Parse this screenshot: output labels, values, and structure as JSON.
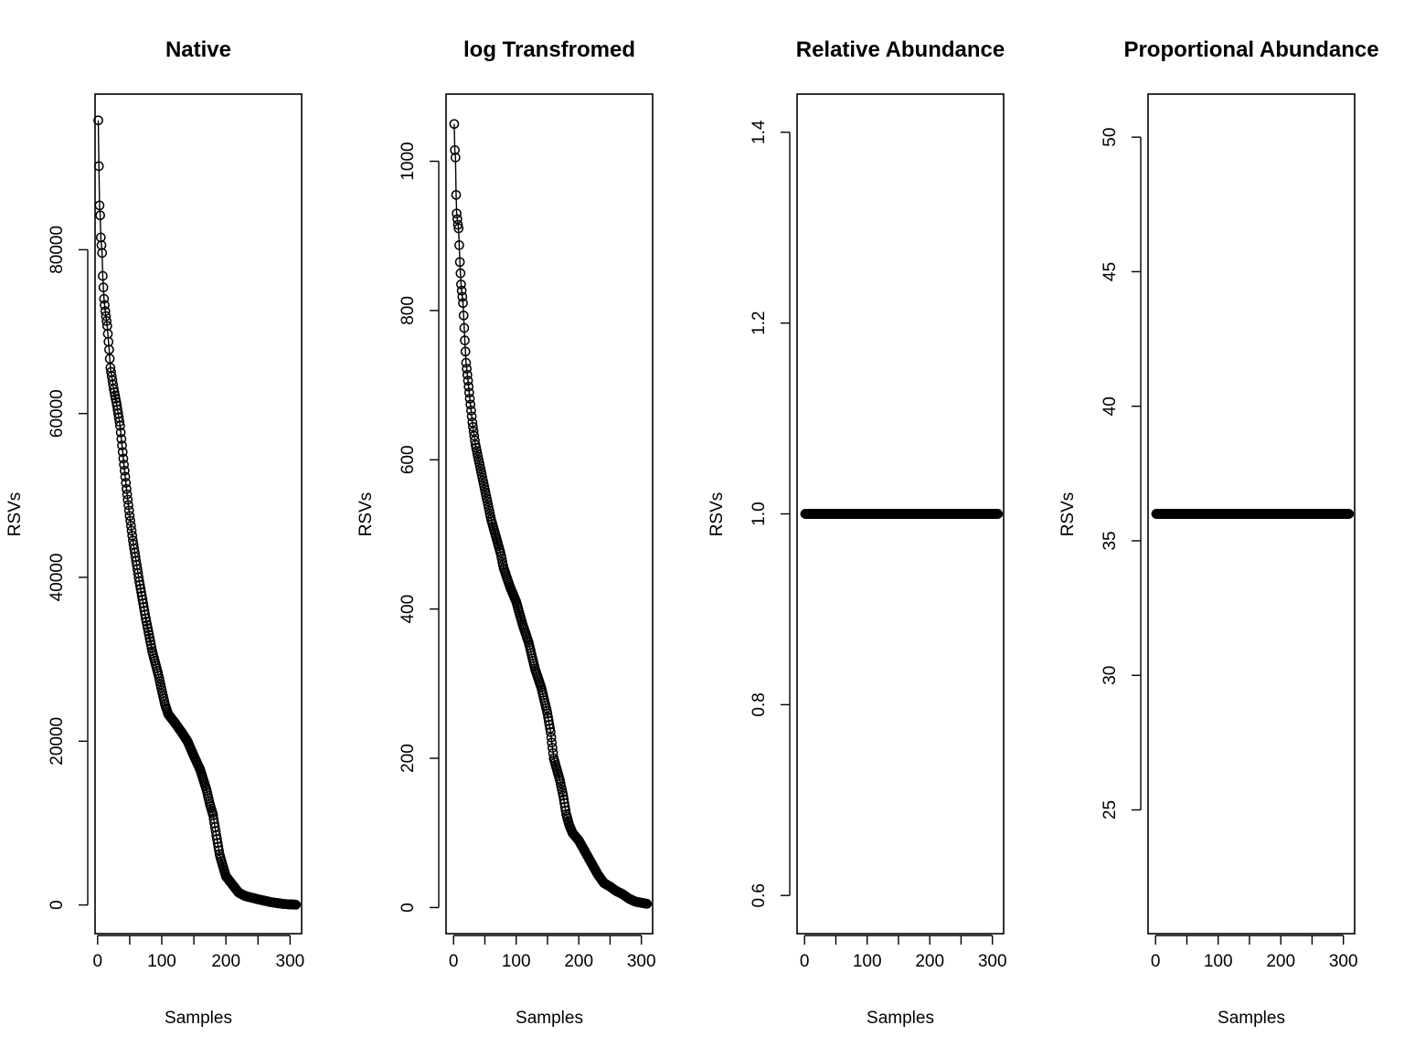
{
  "colors": {
    "ink": "#000000",
    "background": "#ffffff"
  },
  "chart_data": [
    {
      "type": "line",
      "title": "Native",
      "xlabel": "Samples",
      "ylabel": "RSVs",
      "xlim": [
        -4,
        318
      ],
      "ylim": [
        -3500,
        99000
      ],
      "xticks": [
        0,
        100,
        200,
        300
      ],
      "yticks": [
        0,
        20000,
        40000,
        60000,
        80000
      ],
      "x_ticks_unlabeled": [
        50,
        150,
        250
      ],
      "points_style": "open circles joined by line",
      "anchors": [
        [
          1,
          95800
        ],
        [
          2,
          90200
        ],
        [
          3,
          85400
        ],
        [
          4,
          84200
        ],
        [
          5,
          81500
        ],
        [
          7,
          79600
        ],
        [
          8,
          76800
        ],
        [
          10,
          74000
        ],
        [
          12,
          72500
        ],
        [
          15,
          70700
        ],
        [
          18,
          67800
        ],
        [
          20,
          65600
        ],
        [
          25,
          63000
        ],
        [
          30,
          61000
        ],
        [
          35,
          58500
        ],
        [
          40,
          54500
        ],
        [
          45,
          50800
        ],
        [
          50,
          47500
        ],
        [
          55,
          44500
        ],
        [
          60,
          42000
        ],
        [
          65,
          39500
        ],
        [
          70,
          37300
        ],
        [
          75,
          35000
        ],
        [
          80,
          33000
        ],
        [
          85,
          31000
        ],
        [
          90,
          29500
        ],
        [
          95,
          28000
        ],
        [
          100,
          26200
        ],
        [
          105,
          24500
        ],
        [
          110,
          23300
        ],
        [
          120,
          22300
        ],
        [
          130,
          21200
        ],
        [
          140,
          20000
        ],
        [
          150,
          18200
        ],
        [
          160,
          16500
        ],
        [
          170,
          14000
        ],
        [
          175,
          12300
        ],
        [
          180,
          11000
        ],
        [
          185,
          8500
        ],
        [
          190,
          6200
        ],
        [
          195,
          4800
        ],
        [
          200,
          3500
        ],
        [
          210,
          2500
        ],
        [
          220,
          1500
        ],
        [
          230,
          1100
        ],
        [
          250,
          700
        ],
        [
          270,
          350
        ],
        [
          290,
          120
        ],
        [
          309,
          40
        ]
      ],
      "n_points": 309
    },
    {
      "type": "line",
      "title": "log Transfromed",
      "xlabel": "Samples",
      "ylabel": "RSVs",
      "xlim": [
        -12,
        318
      ],
      "ylim": [
        -35,
        1090
      ],
      "xticks": [
        0,
        100,
        200,
        300
      ],
      "yticks": [
        0,
        200,
        400,
        600,
        800,
        1000
      ],
      "x_ticks_unlabeled": [
        50,
        150,
        250
      ],
      "points_style": "open circles joined by line",
      "anchors": [
        [
          1,
          1050
        ],
        [
          2,
          1015
        ],
        [
          3,
          1005
        ],
        [
          4,
          955
        ],
        [
          5,
          930
        ],
        [
          7,
          915
        ],
        [
          8,
          910
        ],
        [
          10,
          865
        ],
        [
          12,
          835
        ],
        [
          15,
          810
        ],
        [
          18,
          760
        ],
        [
          20,
          730
        ],
        [
          25,
          690
        ],
        [
          30,
          650
        ],
        [
          35,
          620
        ],
        [
          40,
          600
        ],
        [
          45,
          580
        ],
        [
          50,
          560
        ],
        [
          55,
          540
        ],
        [
          60,
          520
        ],
        [
          65,
          505
        ],
        [
          70,
          490
        ],
        [
          75,
          475
        ],
        [
          80,
          455
        ],
        [
          90,
          430
        ],
        [
          100,
          410
        ],
        [
          110,
          380
        ],
        [
          120,
          355
        ],
        [
          130,
          320
        ],
        [
          140,
          295
        ],
        [
          150,
          260
        ],
        [
          155,
          235
        ],
        [
          160,
          200
        ],
        [
          165,
          185
        ],
        [
          170,
          170
        ],
        [
          175,
          150
        ],
        [
          180,
          125
        ],
        [
          185,
          110
        ],
        [
          190,
          100
        ],
        [
          200,
          90
        ],
        [
          210,
          75
        ],
        [
          220,
          60
        ],
        [
          230,
          45
        ],
        [
          240,
          33
        ],
        [
          250,
          28
        ],
        [
          260,
          22
        ],
        [
          270,
          18
        ],
        [
          280,
          12
        ],
        [
          290,
          8
        ],
        [
          309,
          5
        ]
      ],
      "n_points": 309
    },
    {
      "type": "scatter",
      "title": "Relative Abundance",
      "xlabel": "Samples",
      "ylabel": "RSVs",
      "xlim": [
        -12,
        318
      ],
      "ylim": [
        0.56,
        1.44
      ],
      "xticks": [
        0,
        100,
        200,
        300
      ],
      "yticks": [
        0.6,
        0.8,
        1.0,
        1.2,
        1.4
      ],
      "y_tick_labels": [
        "0.6",
        "0.8",
        "1.0",
        "1.2",
        "1.4"
      ],
      "x_ticks_unlabeled": [
        50,
        150,
        250
      ],
      "points_style": "open circles joined by line",
      "constant_value": 1.0,
      "x_range": [
        1,
        309
      ],
      "n_points": 309
    },
    {
      "type": "scatter",
      "title": "Proportional Abundance",
      "xlabel": "Samples",
      "ylabel": "RSVs",
      "xlim": [
        -12,
        318
      ],
      "ylim": [
        20.4,
        51.6
      ],
      "xticks": [
        0,
        100,
        200,
        300
      ],
      "yticks": [
        25,
        30,
        35,
        40,
        45,
        50
      ],
      "x_ticks_unlabeled": [
        50,
        150,
        250
      ],
      "points_style": "open circles joined by line",
      "constant_value": 36,
      "x_range": [
        1,
        309
      ],
      "n_points": 309
    }
  ]
}
